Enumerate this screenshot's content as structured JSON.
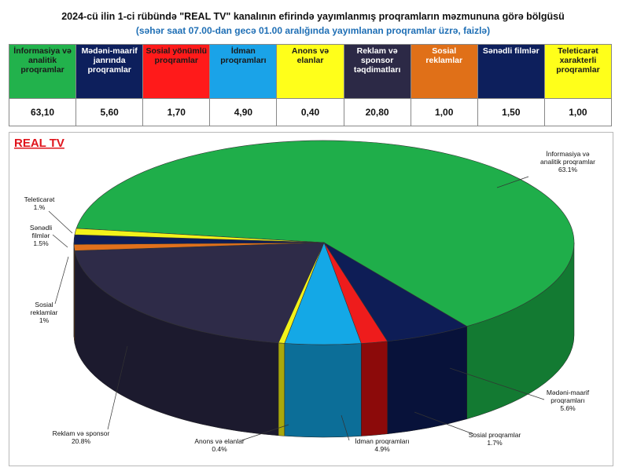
{
  "title": "2024-cü ilin 1-ci rübündə \"REAL TV\" kanalının efirində yayımlanmış proqramların məzmununa görə bölgüsü",
  "subtitle": "(səhər saat 07.00-dan gecə 01.00 aralığında yayımlanan proqramlar üzrə, faizlə)",
  "table": {
    "headers": [
      {
        "label": "İnformasiya və analitik proqramlar",
        "bg": "#22b24c",
        "fg": "#1a1a1a"
      },
      {
        "label": "Mədəni-maarif janrında proqramlar",
        "bg": "#0d1f5c",
        "fg": "#ffffff"
      },
      {
        "label": "Sosial yönümlü proqramlar",
        "bg": "#ff1a1a",
        "fg": "#1a1a1a"
      },
      {
        "label": "İdman proqramları",
        "bg": "#1aa3e8",
        "fg": "#1a1a1a"
      },
      {
        "label": "Anons və elanlar",
        "bg": "#ffff1a",
        "fg": "#1a1a1a"
      },
      {
        "label": "Reklam və sponsor təqdimatları",
        "bg": "#2c2946",
        "fg": "#ffffff"
      },
      {
        "label": "Sosial reklamlar",
        "bg": "#e07018",
        "fg": "#ffffff"
      },
      {
        "label": "Sənədli filmlər",
        "bg": "#0d1f5c",
        "fg": "#ffffff"
      },
      {
        "label": "Teleticarət xarakterli proqramlar",
        "bg": "#ffff1a",
        "fg": "#1a1a1a"
      }
    ],
    "values": [
      "63,10",
      "5,60",
      "1,70",
      "4,90",
      "0,40",
      "20,80",
      "1,00",
      "1,50",
      "1,00"
    ]
  },
  "chart_data": {
    "type": "pie",
    "title": "REAL TV",
    "slices": [
      {
        "label_lines": [
          "İnformasiya və",
          "analitik proqramlar"
        ],
        "pct_label": "63.1%",
        "value": 63.1,
        "color": "#1fae4a",
        "side": "#137a32"
      },
      {
        "label_lines": [
          "Mədəni-maarif",
          "proqramları"
        ],
        "pct_label": "5.6%",
        "value": 5.6,
        "color": "#0e1d56",
        "side": "#08123a"
      },
      {
        "label_lines": [
          "Sosial proqramlar"
        ],
        "pct_label": "1.7%",
        "value": 1.7,
        "color": "#ee1c1c",
        "side": "#8c0a0a"
      },
      {
        "label_lines": [
          "İdman proqramları"
        ],
        "pct_label": "4.9%",
        "value": 4.9,
        "color": "#14a8e6",
        "side": "#0c6e98"
      },
      {
        "label_lines": [
          "Anons və elanlar"
        ],
        "pct_label": "0.4%",
        "value": 0.4,
        "color": "#f2f21a",
        "side": "#a8a80c"
      },
      {
        "label_lines": [
          "Reklam və sponsor"
        ],
        "pct_label": "20.8%",
        "value": 20.8,
        "color": "#2e2b48",
        "side": "#1c1a2e"
      },
      {
        "label_lines": [
          "Sosial",
          "reklamlar"
        ],
        "pct_label": "1%",
        "value": 1.0,
        "color": "#e0701c",
        "side": "#9a4a10"
      },
      {
        "label_lines": [
          "Sənədli",
          "filmlər"
        ],
        "pct_label": "1.5%",
        "value": 1.5,
        "color": "#0e1d56",
        "side": "#08123a"
      },
      {
        "label_lines": [
          "Teleticarət"
        ],
        "pct_label": "1.%",
        "value": 1.0,
        "color": "#f2f21a",
        "side": "#a8a80c"
      }
    ]
  }
}
